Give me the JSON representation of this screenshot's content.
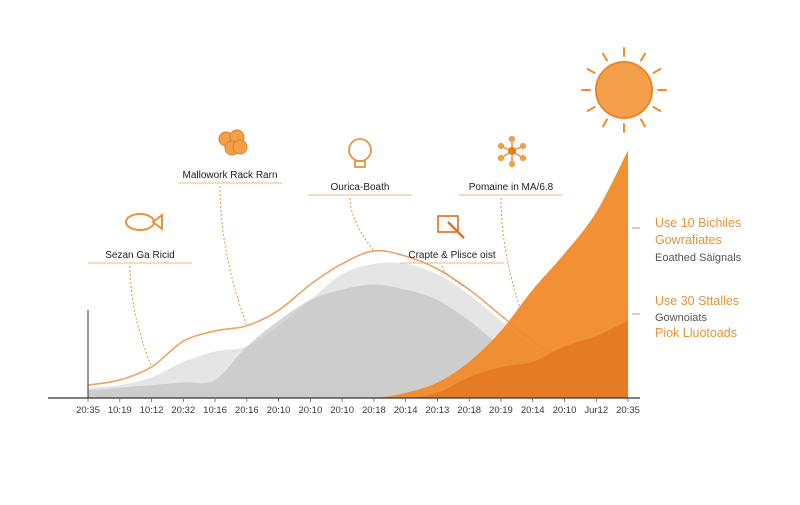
{
  "chart_data": {
    "type": "area",
    "title": "",
    "xlabel": "",
    "ylabel": "",
    "x_tick_labels": [
      "20:35",
      "10:19",
      "10:12",
      "20:32",
      "10:16",
      "20:16",
      "20:10",
      "20:10",
      "20:10",
      "20:18",
      "20:14",
      "20:13",
      "20:18",
      "20:19",
      "20:14",
      "20:10",
      "Jur12",
      "20:35"
    ],
    "ylim": [
      0,
      100
    ],
    "grid": false,
    "series": [
      {
        "color": "#e8a563",
        "values": [
          5,
          7,
          12,
          22,
          26,
          28,
          34,
          44,
          52,
          57,
          55,
          50,
          42,
          32,
          22,
          15,
          12,
          9
        ]
      },
      {
        "color": "#cfcfcf",
        "values": [
          4,
          5,
          8,
          14,
          18,
          20,
          28,
          38,
          48,
          52,
          52,
          48,
          40,
          30,
          20,
          12,
          8,
          6
        ]
      },
      {
        "color": "#bdbdbd",
        "values": [
          3,
          4,
          5,
          6,
          7,
          20,
          30,
          38,
          42,
          44,
          42,
          38,
          30,
          20,
          12,
          6,
          4,
          3
        ]
      },
      {
        "color": "#f08a2a",
        "values": [
          0,
          0,
          0,
          0,
          0,
          0,
          0,
          0,
          0,
          0,
          2,
          6,
          14,
          26,
          42,
          56,
          72,
          96
        ]
      },
      {
        "color": "#e06e1c",
        "values": [
          0,
          0,
          0,
          0,
          0,
          0,
          0,
          0,
          0,
          0,
          0,
          2,
          8,
          12,
          14,
          20,
          24,
          30
        ]
      }
    ],
    "annotations": [
      {
        "text": "Sezan Ga Ricid",
        "icon": "fish-icon",
        "at_index": 2
      },
      {
        "text": "Mallowork Rack Rarn",
        "icon": "cluster-icon",
        "at_index": 5
      },
      {
        "text": "Ourica-Boath",
        "icon": "lightbulb-icon",
        "at_index": 9
      },
      {
        "text": "Crapte & Plisce oist",
        "icon": "tablet-pen-icon",
        "at_index": 12
      },
      {
        "text": "Pomaine in MA/6.8",
        "icon": "molecule-icon",
        "at_index": 14
      }
    ],
    "sun_icon": "sun-icon"
  },
  "side_labels": {
    "group1": [
      "Use 10 Bichiles",
      "Gowrafiates",
      "Eoathed Säignals"
    ],
    "group2": [
      "Use 30 Sttalles",
      "Gownoiats",
      "Piok Lluotoads"
    ]
  },
  "colors": {
    "accent": "#f08a2a",
    "gray": "#c8c8c8",
    "axis": "#333333"
  }
}
